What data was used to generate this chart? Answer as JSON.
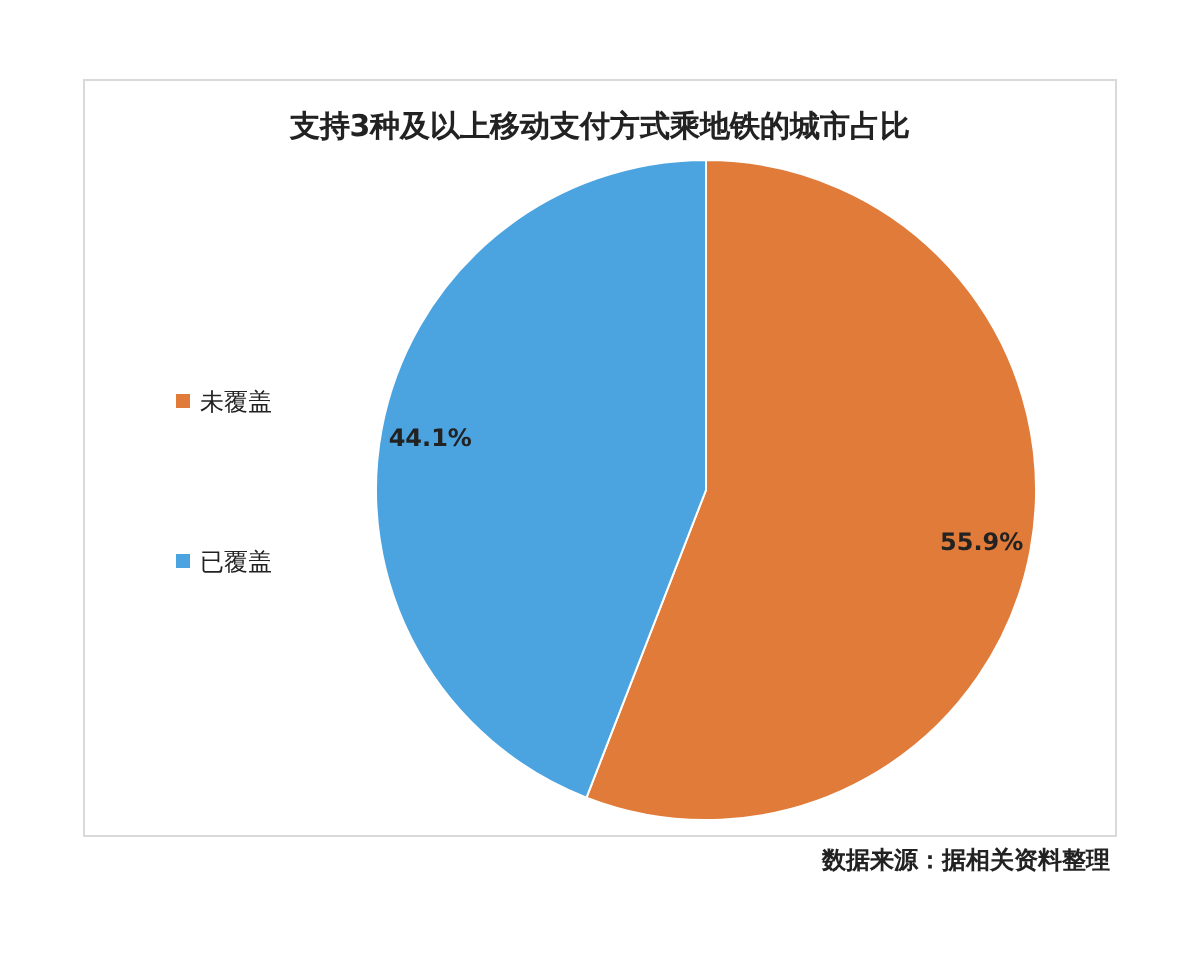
{
  "chart_data": {
    "type": "pie",
    "title": "支持3种及以上移动支付方式乘地铁的城市占比",
    "categories": [
      "未覆盖",
      "已覆盖"
    ],
    "values": [
      55.9,
      44.1
    ],
    "colors": [
      "#e07b39",
      "#4ba3e0"
    ],
    "value_labels": [
      "55.9%",
      "44.1%"
    ],
    "legend": "left",
    "annotations": [
      "数据来源：据相关资料整理"
    ]
  }
}
